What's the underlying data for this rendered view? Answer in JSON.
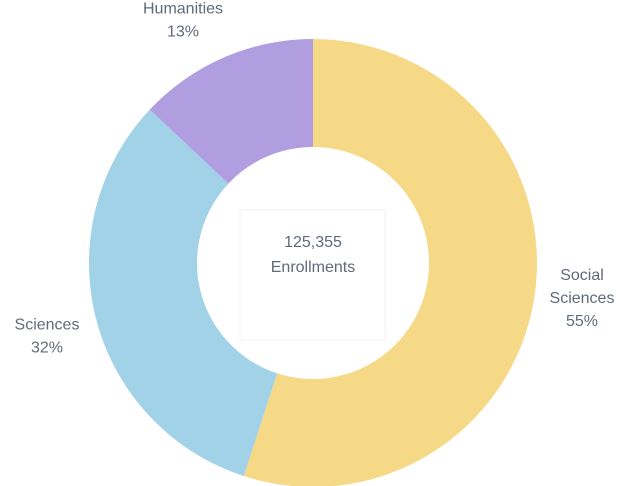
{
  "chart_data": {
    "type": "pie",
    "donut": true,
    "total": "125,355",
    "center_label": "Enrollments",
    "slices": [
      {
        "name": "Social Sciences",
        "label_lines": [
          "Social",
          "Sciences"
        ],
        "value": 55,
        "value_label": "55%",
        "color": "#f5d987"
      },
      {
        "name": "Sciences",
        "label_lines": [
          "Sciences"
        ],
        "value": 32,
        "value_label": "32%",
        "color": "#a1d2e7"
      },
      {
        "name": "Humanities",
        "label_lines": [
          "Humanities"
        ],
        "value": 13,
        "value_label": "13%",
        "color": "#b19ee0"
      }
    ],
    "start_angle_deg": 0,
    "direction": "clockwise"
  }
}
